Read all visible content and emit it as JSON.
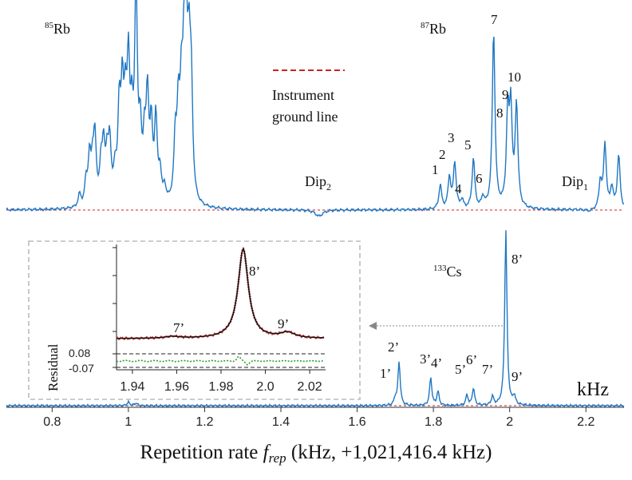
{
  "chart_data": {
    "type": "line",
    "xlabel": {
      "prefix": "Repetition rate ",
      "symbol": "f",
      "subscript": "rep",
      "suffix": " (kHz, +1,021,416.4 kHz)"
    },
    "unit_label": "kHz",
    "xlim": [
      0.68,
      2.3
    ],
    "x_ticks": [
      0.8,
      1.0,
      1.2,
      1.4,
      1.6,
      1.8,
      2.0,
      2.2
    ],
    "x_tick_labels": [
      "0.8",
      "1",
      "1.2",
      "1.4",
      "1.6",
      "1.8",
      "2",
      "2.2"
    ],
    "legend": {
      "label_line1": "Instrument",
      "label_line2": "ground line",
      "color": "#cc2222"
    },
    "colors": {
      "spectrum": "#1f77c4",
      "ground": "#cc2222",
      "fit": "#111111",
      "residual": "#2ca02c",
      "inset_border": "#bbbbbb",
      "arrow": "#888888"
    },
    "top_trace": {
      "species": [
        {
          "mass": "85",
          "element": "Rb",
          "x": 0.71
        },
        {
          "mass": "87",
          "element": "Rb",
          "x": 1.85
        }
      ],
      "dips": [
        {
          "main": "Dip",
          "sub": "2",
          "x": 1.5
        },
        {
          "main": "Dip",
          "sub": "1",
          "x": 2.23
        }
      ],
      "peaks_85Rb": [
        {
          "x": 0.872,
          "h": 0.06
        },
        {
          "x": 0.889,
          "h": 0.11
        },
        {
          "x": 0.898,
          "h": 0.22
        },
        {
          "x": 0.906,
          "h": 0.16
        },
        {
          "x": 0.912,
          "h": 0.31
        },
        {
          "x": 0.928,
          "h": 0.17
        },
        {
          "x": 0.935,
          "h": 0.26
        },
        {
          "x": 0.944,
          "h": 0.19
        },
        {
          "x": 0.951,
          "h": 0.28
        },
        {
          "x": 0.965,
          "h": 0.14
        },
        {
          "x": 0.976,
          "h": 0.42
        },
        {
          "x": 0.984,
          "h": 0.48
        },
        {
          "x": 0.992,
          "h": 0.38
        },
        {
          "x": 1.0,
          "h": 0.6
        },
        {
          "x": 1.009,
          "h": 0.34
        },
        {
          "x": 1.02,
          "h": 1.0
        },
        {
          "x": 1.031,
          "h": 0.3
        },
        {
          "x": 1.042,
          "h": 0.26
        },
        {
          "x": 1.05,
          "h": 0.48
        },
        {
          "x": 1.06,
          "h": 0.34
        },
        {
          "x": 1.072,
          "h": 0.4
        },
        {
          "x": 1.083,
          "h": 0.14
        },
        {
          "x": 1.095,
          "h": 0.07
        },
        {
          "x": 1.123,
          "h": 0.28
        },
        {
          "x": 1.131,
          "h": 0.4
        },
        {
          "x": 1.139,
          "h": 0.44
        },
        {
          "x": 1.146,
          "h": 0.58
        },
        {
          "x": 1.152,
          "h": 0.63
        },
        {
          "x": 1.159,
          "h": 0.58
        },
        {
          "x": 1.165,
          "h": 0.5
        }
      ],
      "peaks_87Rb": [
        {
          "label": "1",
          "x": 1.818,
          "h": 0.115
        },
        {
          "label": "2",
          "x": 1.842,
          "h": 0.15
        },
        {
          "label": "3",
          "x": 1.856,
          "h": 0.22
        },
        {
          "label": "4",
          "x": 1.875,
          "h": 0.04
        },
        {
          "label": "5",
          "x": 1.905,
          "h": 0.24
        },
        {
          "label": "6",
          "x": 1.93,
          "h": 0.05
        },
        {
          "label": "7",
          "x": 1.958,
          "h": 0.85
        },
        {
          "label": "8",
          "x": 1.995,
          "h": 0.43
        },
        {
          "label": "9",
          "x": 2.003,
          "h": 0.45
        },
        {
          "label": "10",
          "x": 2.018,
          "h": 0.49
        }
      ],
      "peaks_right": [
        {
          "x": 2.238,
          "h": 0.13
        },
        {
          "x": 2.25,
          "h": 0.31
        },
        {
          "x": 2.268,
          "h": 0.1
        },
        {
          "x": 2.286,
          "h": 0.26
        }
      ],
      "dip_values": [
        {
          "x": 1.5,
          "h": -0.03
        },
        {
          "x": 2.21,
          "h": -0.01
        }
      ]
    },
    "bottom_trace": {
      "species": {
        "mass": "133",
        "element": "Cs",
        "x": 1.815
      },
      "peaks": [
        {
          "label": "1’",
          "x": 1.7,
          "h": 0.04
        },
        {
          "label": "2’",
          "x": 1.71,
          "h": 0.25
        },
        {
          "label": "3’",
          "x": 1.793,
          "h": 0.16
        },
        {
          "label": "4’",
          "x": 1.812,
          "h": 0.08
        },
        {
          "label": "5’",
          "x": 1.888,
          "h": 0.06
        },
        {
          "label": "6’",
          "x": 1.905,
          "h": 0.1
        },
        {
          "label": "7’",
          "x": 1.955,
          "h": 0.05
        },
        {
          "label": "8’",
          "x": 1.99,
          "h": 1.0
        },
        {
          "label": "9’",
          "x": 2.012,
          "h": 0.05
        }
      ]
    },
    "inset": {
      "xlim": [
        1.935,
        2.025
      ],
      "x_ticks": [
        1.94,
        1.96,
        1.98,
        2.0,
        2.02
      ],
      "x_tick_labels": [
        "1.94",
        "1.96",
        "1.98",
        "2.0",
        "2.02"
      ],
      "residual_label": "Residual",
      "residual_ticks": [
        "0.08",
        "-0.07"
      ],
      "residual_bounds": [
        0.08,
        -0.07
      ],
      "peaks": [
        {
          "label": "7’",
          "x": 1.958,
          "h": 0.02
        },
        {
          "label": "8’",
          "x": 1.99,
          "h": 1.0
        },
        {
          "label": "9’",
          "x": 2.01,
          "h": 0.06
        }
      ]
    }
  }
}
